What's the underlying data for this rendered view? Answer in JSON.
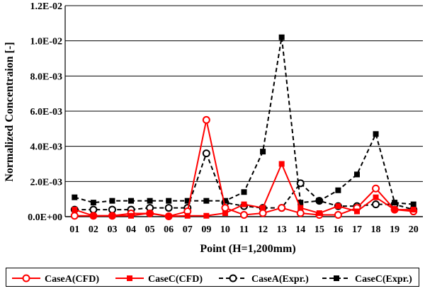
{
  "chart_data": {
    "type": "line",
    "title": "",
    "xlabel": "Point (H=1,200mm)",
    "ylabel": "Normalized Concentraion  [-]",
    "ylim": [
      0,
      0.012
    ],
    "yticks": [
      "0.0E+00",
      "2.0E-03",
      "4.0E-03",
      "6.0E-03",
      "8.0E-03",
      "1.0E-02",
      "1.2E-02"
    ],
    "categories": [
      "01",
      "02",
      "03",
      "04",
      "05",
      "06",
      "07",
      "09",
      "10",
      "11",
      "12",
      "13",
      "14",
      "15",
      "16",
      "17",
      "18",
      "19",
      "20"
    ],
    "grid": "horizontal",
    "legend_position": "bottom",
    "series": [
      {
        "name": "CaseA(CFD)",
        "color": "#ff0000",
        "line": "solid",
        "marker": "open-circle",
        "values": [
          5e-05,
          5e-05,
          5e-05,
          0.00018,
          0.00018,
          2e-05,
          0.0003,
          0.0055,
          0.0005,
          0.0001,
          0.0002,
          0.0005,
          0.0002,
          0.0001,
          0.0001,
          0.0005,
          0.0016,
          0.0004,
          0.0003
        ]
      },
      {
        "name": "CaseC(CFD)",
        "color": "#ff0000",
        "line": "solid",
        "marker": "filled-square",
        "values": [
          0.0004,
          5e-05,
          5e-05,
          5e-05,
          0.0002,
          2e-05,
          5e-05,
          5e-05,
          0.0002,
          0.0007,
          0.0005,
          0.003,
          0.0005,
          0.0002,
          0.0006,
          0.0003,
          0.0011,
          0.0004,
          0.0004
        ]
      },
      {
        "name": "CaseA(Expr.)",
        "color": "#000000",
        "line": "dashed",
        "marker": "open-circle",
        "values": [
          0.0004,
          0.0004,
          0.0004,
          0.0004,
          0.0005,
          0.0005,
          0.0005,
          0.0036,
          0.0008,
          0.0006,
          0.0005,
          0.0005,
          0.0019,
          0.0009,
          0.0006,
          0.0006,
          0.0007,
          0.0007,
          0.0004
        ]
      },
      {
        "name": "CaseC(Expr.)",
        "color": "#000000",
        "line": "dashed",
        "marker": "filled-square",
        "values": [
          0.0011,
          0.0008,
          0.0009,
          0.0009,
          0.0009,
          0.0009,
          0.0009,
          0.0009,
          0.0009,
          0.0014,
          0.0037,
          0.0102,
          0.0008,
          0.0009,
          0.0015,
          0.0024,
          0.0047,
          0.0008,
          0.0007
        ]
      }
    ]
  }
}
